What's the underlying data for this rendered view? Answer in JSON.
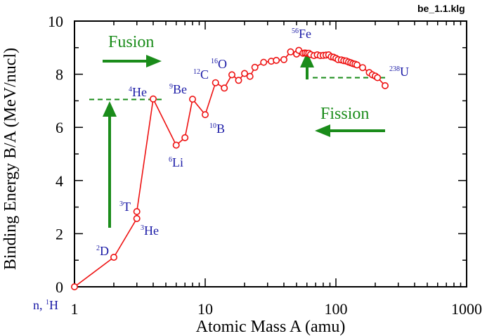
{
  "file_label": "be_1.1.klg",
  "colors": {
    "curve": "#ee1111",
    "label_blue": "#1a1aa6",
    "arrow_green": "#1a8c1a",
    "axis": "#000000"
  },
  "chart_data": {
    "type": "line",
    "title": "",
    "xlabel": "Atomic Mass A (amu)",
    "ylabel": "Binding Energy B/A (MeV/nucl)",
    "xscale": "log",
    "xlim": [
      1,
      1000
    ],
    "ylim": [
      0,
      10
    ],
    "x_ticks": [
      {
        "value": 1,
        "label": "1"
      },
      {
        "value": 10,
        "label": "10"
      },
      {
        "value": 100,
        "label": "100"
      },
      {
        "value": 1000,
        "label": "1000"
      }
    ],
    "y_ticks": [
      {
        "value": 0,
        "label": "0"
      },
      {
        "value": 2,
        "label": "2"
      },
      {
        "value": 4,
        "label": "4"
      },
      {
        "value": 6,
        "label": "6"
      },
      {
        "value": 8,
        "label": "8"
      },
      {
        "value": 10,
        "label": "10"
      }
    ],
    "series": [
      {
        "x": [
          1,
          2,
          3,
          3,
          4,
          6,
          7,
          8,
          10,
          12,
          14,
          16,
          18,
          20,
          22,
          24,
          28,
          32,
          35,
          40,
          45,
          50,
          52,
          56,
          58,
          60,
          62,
          64,
          68,
          72,
          76,
          80,
          84,
          88,
          92,
          96,
          100,
          104,
          110,
          115,
          120,
          125,
          130,
          135,
          140,
          145,
          160,
          180,
          190,
          200,
          208,
          238
        ],
        "y": [
          0,
          1.11,
          2.57,
          2.83,
          7.07,
          5.33,
          5.61,
          7.06,
          6.48,
          7.68,
          7.48,
          7.98,
          7.77,
          8.03,
          7.92,
          8.26,
          8.45,
          8.49,
          8.52,
          8.55,
          8.84,
          8.76,
          8.9,
          8.79,
          8.8,
          8.79,
          8.79,
          8.74,
          8.7,
          8.73,
          8.7,
          8.71,
          8.72,
          8.73,
          8.66,
          8.64,
          8.6,
          8.55,
          8.54,
          8.51,
          8.5,
          8.46,
          8.43,
          8.4,
          8.38,
          8.35,
          8.25,
          8.06,
          7.98,
          7.93,
          7.87,
          7.57
        ]
      }
    ],
    "annotations": [
      {
        "id": "n-1h",
        "prefix": "n, ",
        "sup": "1",
        "text": "H"
      },
      {
        "id": "2d",
        "sup": "2",
        "text": "D"
      },
      {
        "id": "3t",
        "sup": "3",
        "text": "T"
      },
      {
        "id": "3he",
        "sup": "3",
        "text": "He"
      },
      {
        "id": "4he",
        "sup": "4",
        "text": "He"
      },
      {
        "id": "6li",
        "sup": "6",
        "text": "Li"
      },
      {
        "id": "9be",
        "sup": "9",
        "text": "Be"
      },
      {
        "id": "10b",
        "sup": "10",
        "text": "B"
      },
      {
        "id": "12c",
        "sup": "12",
        "text": "C"
      },
      {
        "id": "16o",
        "sup": "16",
        "text": "O"
      },
      {
        "id": "56fe",
        "sup": "56",
        "text": "Fe"
      },
      {
        "id": "238u",
        "sup": "238",
        "text": "U"
      }
    ],
    "arrows": {
      "fusion": "Fusion",
      "fission": "Fission"
    },
    "grid": false
  }
}
